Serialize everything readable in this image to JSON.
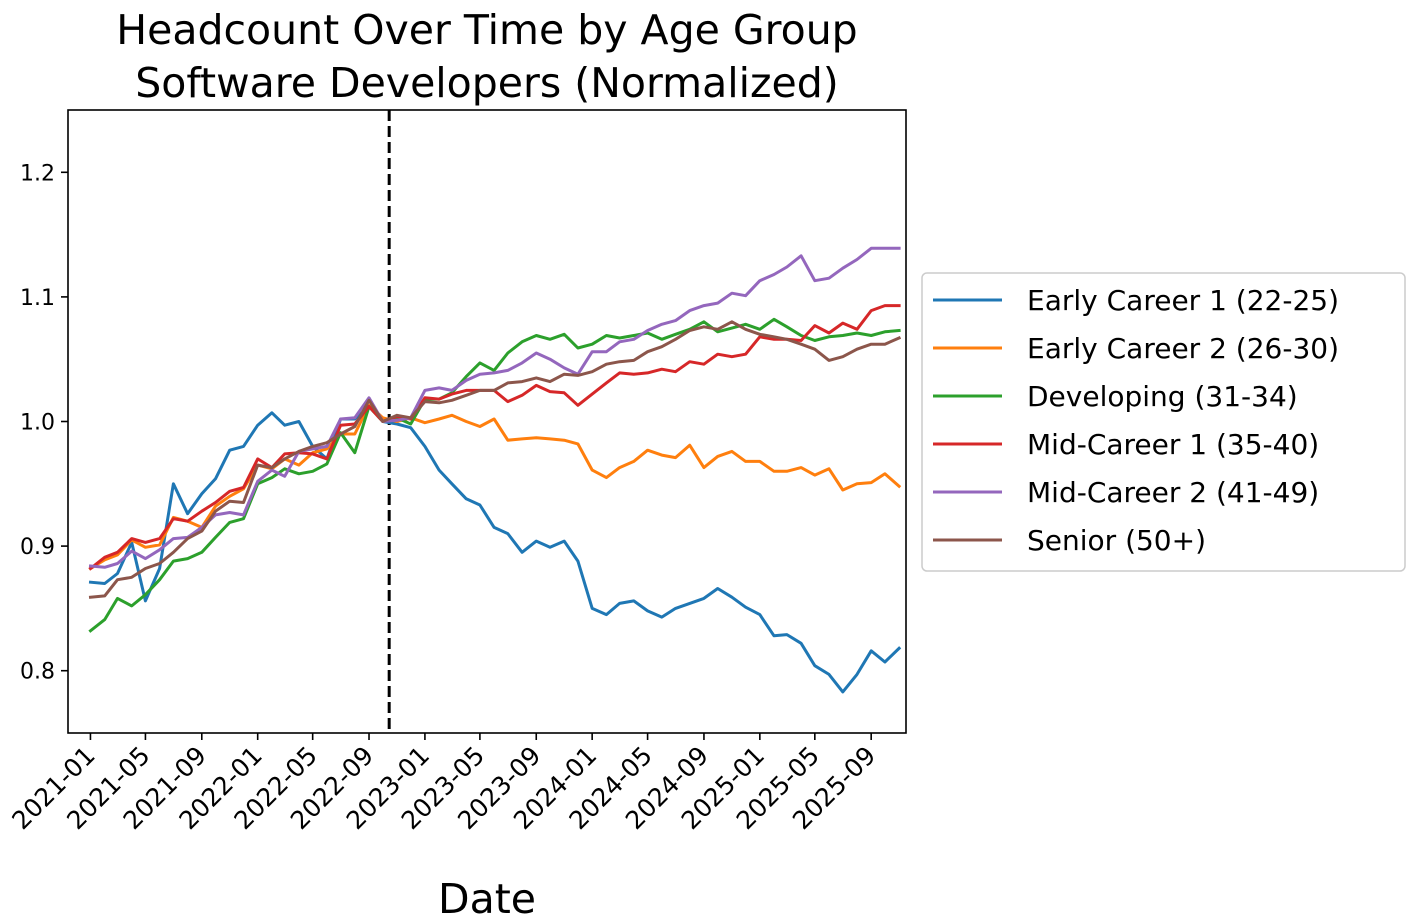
{
  "chart_data": {
    "type": "line",
    "title": "Headcount Over Time by Age Group",
    "subtitle": "Software Developers (Normalized)",
    "xlabel": "Date",
    "ylabel": "",
    "ylim": [
      0.75,
      1.25
    ],
    "yticks": [
      0.8,
      0.9,
      1.0,
      1.1,
      1.2
    ],
    "ytick_labels": [
      "0.8",
      "0.9",
      "1.0",
      "1.1",
      "1.2"
    ],
    "xticks": [
      "2021-01",
      "2021-05",
      "2021-09",
      "2022-01",
      "2022-05",
      "2022-09",
      "2023-01",
      "2023-05",
      "2023-09",
      "2024-01",
      "2024-05",
      "2024-09",
      "2025-01",
      "2025-05",
      "2025-09"
    ],
    "xlim": [
      "2020-11-13",
      "2025-11-16"
    ],
    "start": "2021-01",
    "reference_line": {
      "date": "2022-10-15",
      "style": "dashed",
      "color": "#000000"
    },
    "grid": false,
    "legend_position": "outside-right",
    "series": [
      {
        "name": "Early Career 1 (22-25)",
        "color": "#1f77b4",
        "values": [
          0.871,
          0.87,
          0.878,
          0.903,
          0.856,
          0.882,
          0.95,
          0.926,
          0.942,
          0.954,
          0.977,
          0.98,
          0.997,
          1.007,
          0.997,
          1.0,
          0.98,
          0.97,
          1.002,
          1.002,
          1.012,
          1.0,
          0.998,
          0.995,
          0.98,
          0.961,
          0.95,
          0.938,
          0.933,
          0.915,
          0.91,
          0.895,
          0.904,
          0.899,
          0.904,
          0.888,
          0.85,
          0.845,
          0.854,
          0.856,
          0.848,
          0.843,
          0.85,
          0.854,
          0.858,
          0.866,
          0.859,
          0.851,
          0.845,
          0.828,
          0.829,
          0.822,
          0.804,
          0.797,
          0.783,
          0.797,
          0.816,
          0.807,
          0.818
        ]
      },
      {
        "name": "Early Career 2 (26-30)",
        "color": "#ff7f0e",
        "values": [
          0.882,
          0.889,
          0.893,
          0.905,
          0.899,
          0.901,
          0.923,
          0.92,
          0.915,
          0.932,
          0.94,
          0.946,
          0.965,
          0.962,
          0.97,
          0.965,
          0.975,
          0.978,
          0.99,
          0.99,
          1.013,
          1.003,
          1.0,
          1.003,
          0.999,
          1.002,
          1.005,
          1.0,
          0.996,
          1.002,
          0.985,
          0.986,
          0.987,
          0.986,
          0.985,
          0.982,
          0.961,
          0.955,
          0.963,
          0.968,
          0.977,
          0.973,
          0.971,
          0.981,
          0.963,
          0.972,
          0.976,
          0.968,
          0.968,
          0.96,
          0.96,
          0.963,
          0.957,
          0.962,
          0.945,
          0.95,
          0.951,
          0.958,
          0.948
        ]
      },
      {
        "name": "Developing (31-34)",
        "color": "#2ca02c",
        "values": [
          0.832,
          0.841,
          0.858,
          0.852,
          0.861,
          0.873,
          0.888,
          0.89,
          0.895,
          0.907,
          0.919,
          0.922,
          0.95,
          0.955,
          0.962,
          0.958,
          0.96,
          0.966,
          0.991,
          0.975,
          1.012,
          1.0,
          1.003,
          0.998,
          1.018,
          1.018,
          1.023,
          1.036,
          1.047,
          1.041,
          1.055,
          1.064,
          1.069,
          1.066,
          1.07,
          1.059,
          1.062,
          1.069,
          1.067,
          1.069,
          1.071,
          1.066,
          1.07,
          1.074,
          1.08,
          1.072,
          1.075,
          1.078,
          1.074,
          1.082,
          1.076,
          1.069,
          1.065,
          1.068,
          1.069,
          1.071,
          1.069,
          1.072,
          1.073
        ]
      },
      {
        "name": "Mid-Career 1 (35-40)",
        "color": "#d62728",
        "values": [
          0.882,
          0.891,
          0.895,
          0.906,
          0.903,
          0.906,
          0.922,
          0.92,
          0.928,
          0.935,
          0.944,
          0.947,
          0.97,
          0.963,
          0.974,
          0.975,
          0.974,
          0.97,
          0.997,
          0.998,
          1.012,
          1.0,
          1.004,
          1.002,
          1.019,
          1.018,
          1.022,
          1.025,
          1.025,
          1.025,
          1.016,
          1.021,
          1.029,
          1.024,
          1.023,
          1.013,
          1.022,
          1.031,
          1.039,
          1.038,
          1.039,
          1.042,
          1.04,
          1.048,
          1.046,
          1.054,
          1.052,
          1.054,
          1.068,
          1.066,
          1.066,
          1.065,
          1.077,
          1.071,
          1.079,
          1.074,
          1.089,
          1.093,
          1.093
        ]
      },
      {
        "name": "Mid-Career 2 (41-49)",
        "color": "#9467bd",
        "values": [
          0.884,
          0.883,
          0.886,
          0.896,
          0.89,
          0.897,
          0.906,
          0.907,
          0.915,
          0.925,
          0.927,
          0.925,
          0.952,
          0.961,
          0.956,
          0.976,
          0.978,
          0.98,
          1.002,
          1.003,
          1.019,
          1.0,
          1.001,
          1.003,
          1.025,
          1.027,
          1.025,
          1.033,
          1.038,
          1.039,
          1.041,
          1.047,
          1.055,
          1.05,
          1.043,
          1.038,
          1.056,
          1.056,
          1.064,
          1.066,
          1.073,
          1.078,
          1.081,
          1.089,
          1.093,
          1.095,
          1.103,
          1.101,
          1.113,
          1.118,
          1.124,
          1.133,
          1.113,
          1.115,
          1.123,
          1.13,
          1.139,
          1.139,
          1.139
        ]
      },
      {
        "name": "Senior (50+)",
        "color": "#8c564b",
        "values": [
          0.859,
          0.86,
          0.873,
          0.875,
          0.882,
          0.886,
          0.895,
          0.906,
          0.912,
          0.928,
          0.936,
          0.935,
          0.965,
          0.963,
          0.97,
          0.976,
          0.98,
          0.983,
          0.99,
          0.996,
          1.017,
          1.0,
          1.005,
          1.003,
          1.016,
          1.015,
          1.017,
          1.021,
          1.025,
          1.025,
          1.031,
          1.032,
          1.035,
          1.032,
          1.038,
          1.037,
          1.04,
          1.046,
          1.048,
          1.049,
          1.056,
          1.06,
          1.066,
          1.073,
          1.076,
          1.074,
          1.08,
          1.074,
          1.07,
          1.068,
          1.066,
          1.062,
          1.058,
          1.049,
          1.052,
          1.058,
          1.062,
          1.062,
          1.067
        ]
      }
    ]
  }
}
